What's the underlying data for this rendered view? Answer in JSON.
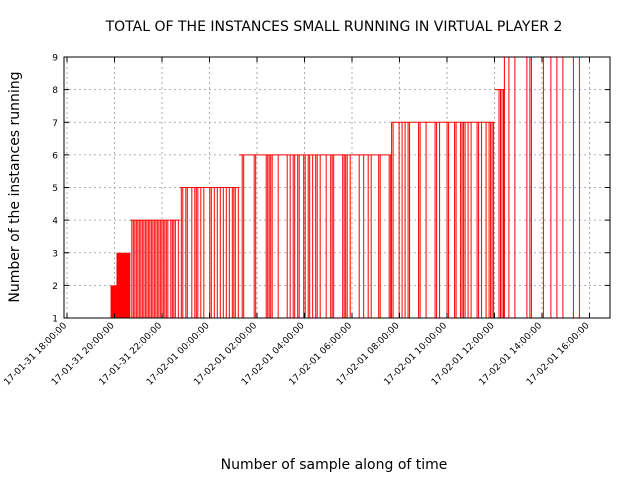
{
  "chart_data": {
    "type": "bar",
    "title": "TOTAL OF THE INSTANCES SMALL RUNNING IN VIRTUAL PLAYER 2",
    "xlabel": "Number of sample along of time",
    "ylabel": "Number of the instances running",
    "ylim": [
      1,
      9
    ],
    "yticks": [
      "1",
      "2",
      "3",
      "4",
      "5",
      "6",
      "7",
      "8",
      "9"
    ],
    "xticks": [
      "17-01-31 18:00:00",
      "17-01-31 20:00:00",
      "17-01-31 22:00:00",
      "17-02-01 00:00:00",
      "17-02-01 02:00:00",
      "17-02-01 04:00:00",
      "17-02-01 06:00:00",
      "17-02-01 08:00:00",
      "17-02-01 10:00:00",
      "17-02-01 12:00:00",
      "17-02-01 14:00:00",
      "17-02-01 16:00:00"
    ],
    "grid": true,
    "bar_color": "#ff0000",
    "segments": [
      {
        "start": "17-01-31 19:50",
        "end": "17-01-31 20:05",
        "value": 2,
        "density": 1
      },
      {
        "start": "17-01-31 20:05",
        "end": "17-01-31 20:40",
        "value": 3,
        "density": 1
      },
      {
        "start": "17-01-31 20:40",
        "end": "17-01-31 22:45",
        "value": 4,
        "density": 0.8
      },
      {
        "start": "17-01-31 22:45",
        "end": "17-02-01 01:15",
        "value": 5,
        "density": 0.55
      },
      {
        "start": "17-02-01 01:15",
        "end": "17-02-01 07:40",
        "value": 6,
        "density": 0.4
      },
      {
        "start": "17-02-01 07:40",
        "end": "17-02-01 12:00",
        "value": 7,
        "density": 0.38
      },
      {
        "start": "17-02-01 12:00",
        "end": "17-02-01 12:25",
        "value": 8,
        "density": 0.45
      },
      {
        "start": "17-02-01 12:25",
        "end": "17-02-01 15:45",
        "value": 9,
        "density": 0.3
      }
    ]
  }
}
